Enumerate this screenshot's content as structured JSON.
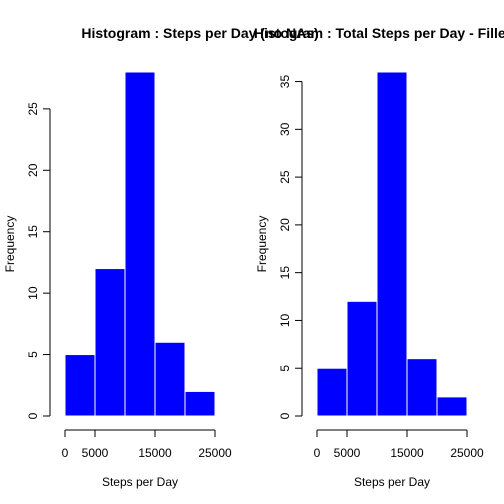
{
  "chart_data": [
    {
      "type": "bar",
      "title": "Histogram : Steps per Day (no NAs)",
      "xlabel": "Steps per Day",
      "ylabel": "Frequency",
      "bin_edges": [
        0,
        5000,
        10000,
        15000,
        20000,
        25000
      ],
      "values": [
        5,
        12,
        28,
        6,
        2
      ],
      "xticks": [
        0,
        5000,
        15000,
        25000
      ],
      "yticks": [
        0,
        5,
        10,
        15,
        20,
        25
      ],
      "xlim": [
        0,
        25000
      ],
      "ylim": [
        0,
        28
      ],
      "bar_color": "#0000ff",
      "bar_border": "#ffffff"
    },
    {
      "type": "bar",
      "title": "Histogram : Total Steps per Day - Filled NAs",
      "xlabel": "Steps per Day",
      "ylabel": "Frequency",
      "bin_edges": [
        0,
        5000,
        10000,
        15000,
        20000,
        25000
      ],
      "values": [
        5,
        12,
        36,
        6,
        2
      ],
      "xticks": [
        0,
        5000,
        15000,
        25000
      ],
      "yticks": [
        0,
        5,
        10,
        15,
        20,
        25,
        30,
        35
      ],
      "xlim": [
        0,
        25000
      ],
      "ylim": [
        0,
        36
      ],
      "bar_color": "#0000ff",
      "bar_border": "#ffffff"
    }
  ]
}
